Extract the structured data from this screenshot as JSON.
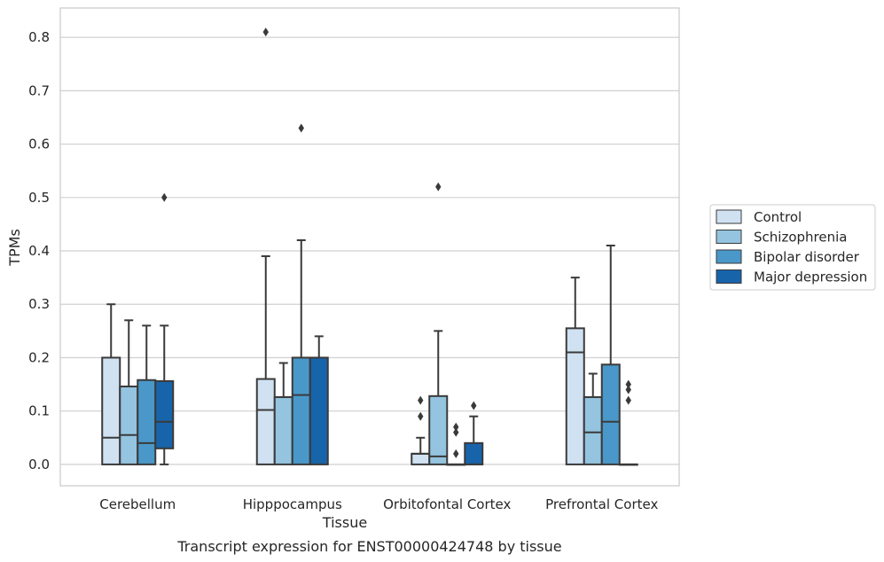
{
  "caption": "Transcript expression for ENST00000424748 by tissue",
  "chart_data": {
    "type": "box",
    "xlabel": "Tissue",
    "ylabel": "TPMs",
    "ylim": [
      -0.04,
      0.855
    ],
    "yticks": [
      "0.0",
      "0.1",
      "0.2",
      "0.3",
      "0.4",
      "0.5",
      "0.6",
      "0.7",
      "0.8"
    ],
    "grid": "horizontal",
    "legend_position": "right",
    "categories": [
      "Cerebellum",
      "Hipppocampus",
      "Orbitofontal Cortex",
      "Prefrontal Cortex"
    ],
    "series": [
      {
        "name": "Control",
        "color": "#d0e1f2",
        "boxes": [
          {
            "q1": 0.0,
            "median": 0.05,
            "q3": 0.2,
            "whislo": 0.0,
            "whishi": 0.3,
            "fliers": []
          },
          {
            "q1": 0.0,
            "median": 0.102,
            "q3": 0.16,
            "whislo": 0.0,
            "whishi": 0.39,
            "fliers": [
              0.81
            ]
          },
          {
            "q1": 0.0,
            "median": 0.02,
            "q3": 0.02,
            "whislo": 0.0,
            "whishi": 0.05,
            "fliers": [
              0.09,
              0.12
            ]
          },
          {
            "q1": 0.0,
            "median": 0.21,
            "q3": 0.255,
            "whislo": 0.0,
            "whishi": 0.35,
            "fliers": []
          }
        ]
      },
      {
        "name": "Schizophrenia",
        "color": "#94c4df",
        "boxes": [
          {
            "q1": 0.0,
            "median": 0.055,
            "q3": 0.146,
            "whislo": 0.0,
            "whishi": 0.27,
            "fliers": []
          },
          {
            "q1": 0.0,
            "median": 0.126,
            "q3": 0.126,
            "whislo": 0.0,
            "whishi": 0.19,
            "fliers": []
          },
          {
            "q1": 0.0,
            "median": 0.015,
            "q3": 0.128,
            "whislo": 0.0,
            "whishi": 0.25,
            "fliers": [
              0.52
            ]
          },
          {
            "q1": 0.0,
            "median": 0.06,
            "q3": 0.126,
            "whislo": 0.0,
            "whishi": 0.17,
            "fliers": []
          }
        ]
      },
      {
        "name": "Bipolar disorder",
        "color": "#4a98c9",
        "boxes": [
          {
            "q1": 0.0,
            "median": 0.04,
            "q3": 0.158,
            "whislo": 0.0,
            "whishi": 0.26,
            "fliers": []
          },
          {
            "q1": 0.0,
            "median": 0.13,
            "q3": 0.2,
            "whislo": 0.0,
            "whishi": 0.42,
            "fliers": [
              0.63
            ]
          },
          {
            "q1": 0.0,
            "median": 0.0,
            "q3": 0.0,
            "whislo": 0.0,
            "whishi": 0.0,
            "fliers": [
              0.02,
              0.06,
              0.07
            ]
          },
          {
            "q1": 0.0,
            "median": 0.08,
            "q3": 0.187,
            "whislo": 0.0,
            "whishi": 0.41,
            "fliers": []
          }
        ]
      },
      {
        "name": "Major depression",
        "color": "#1764ab",
        "boxes": [
          {
            "q1": 0.03,
            "median": 0.08,
            "q3": 0.156,
            "whislo": 0.0,
            "whishi": 0.26,
            "fliers": [
              0.5
            ]
          },
          {
            "q1": 0.0,
            "median": 0.2,
            "q3": 0.2,
            "whislo": 0.0,
            "whishi": 0.24,
            "fliers": []
          },
          {
            "q1": 0.0,
            "median": 0.0,
            "q3": 0.04,
            "whislo": 0.0,
            "whishi": 0.09,
            "fliers": [
              0.11
            ]
          },
          {
            "q1": 0.0,
            "median": 0.0,
            "q3": 0.0,
            "whislo": 0.0,
            "whishi": 0.0,
            "fliers": [
              0.12,
              0.14,
              0.15
            ]
          }
        ]
      }
    ]
  }
}
